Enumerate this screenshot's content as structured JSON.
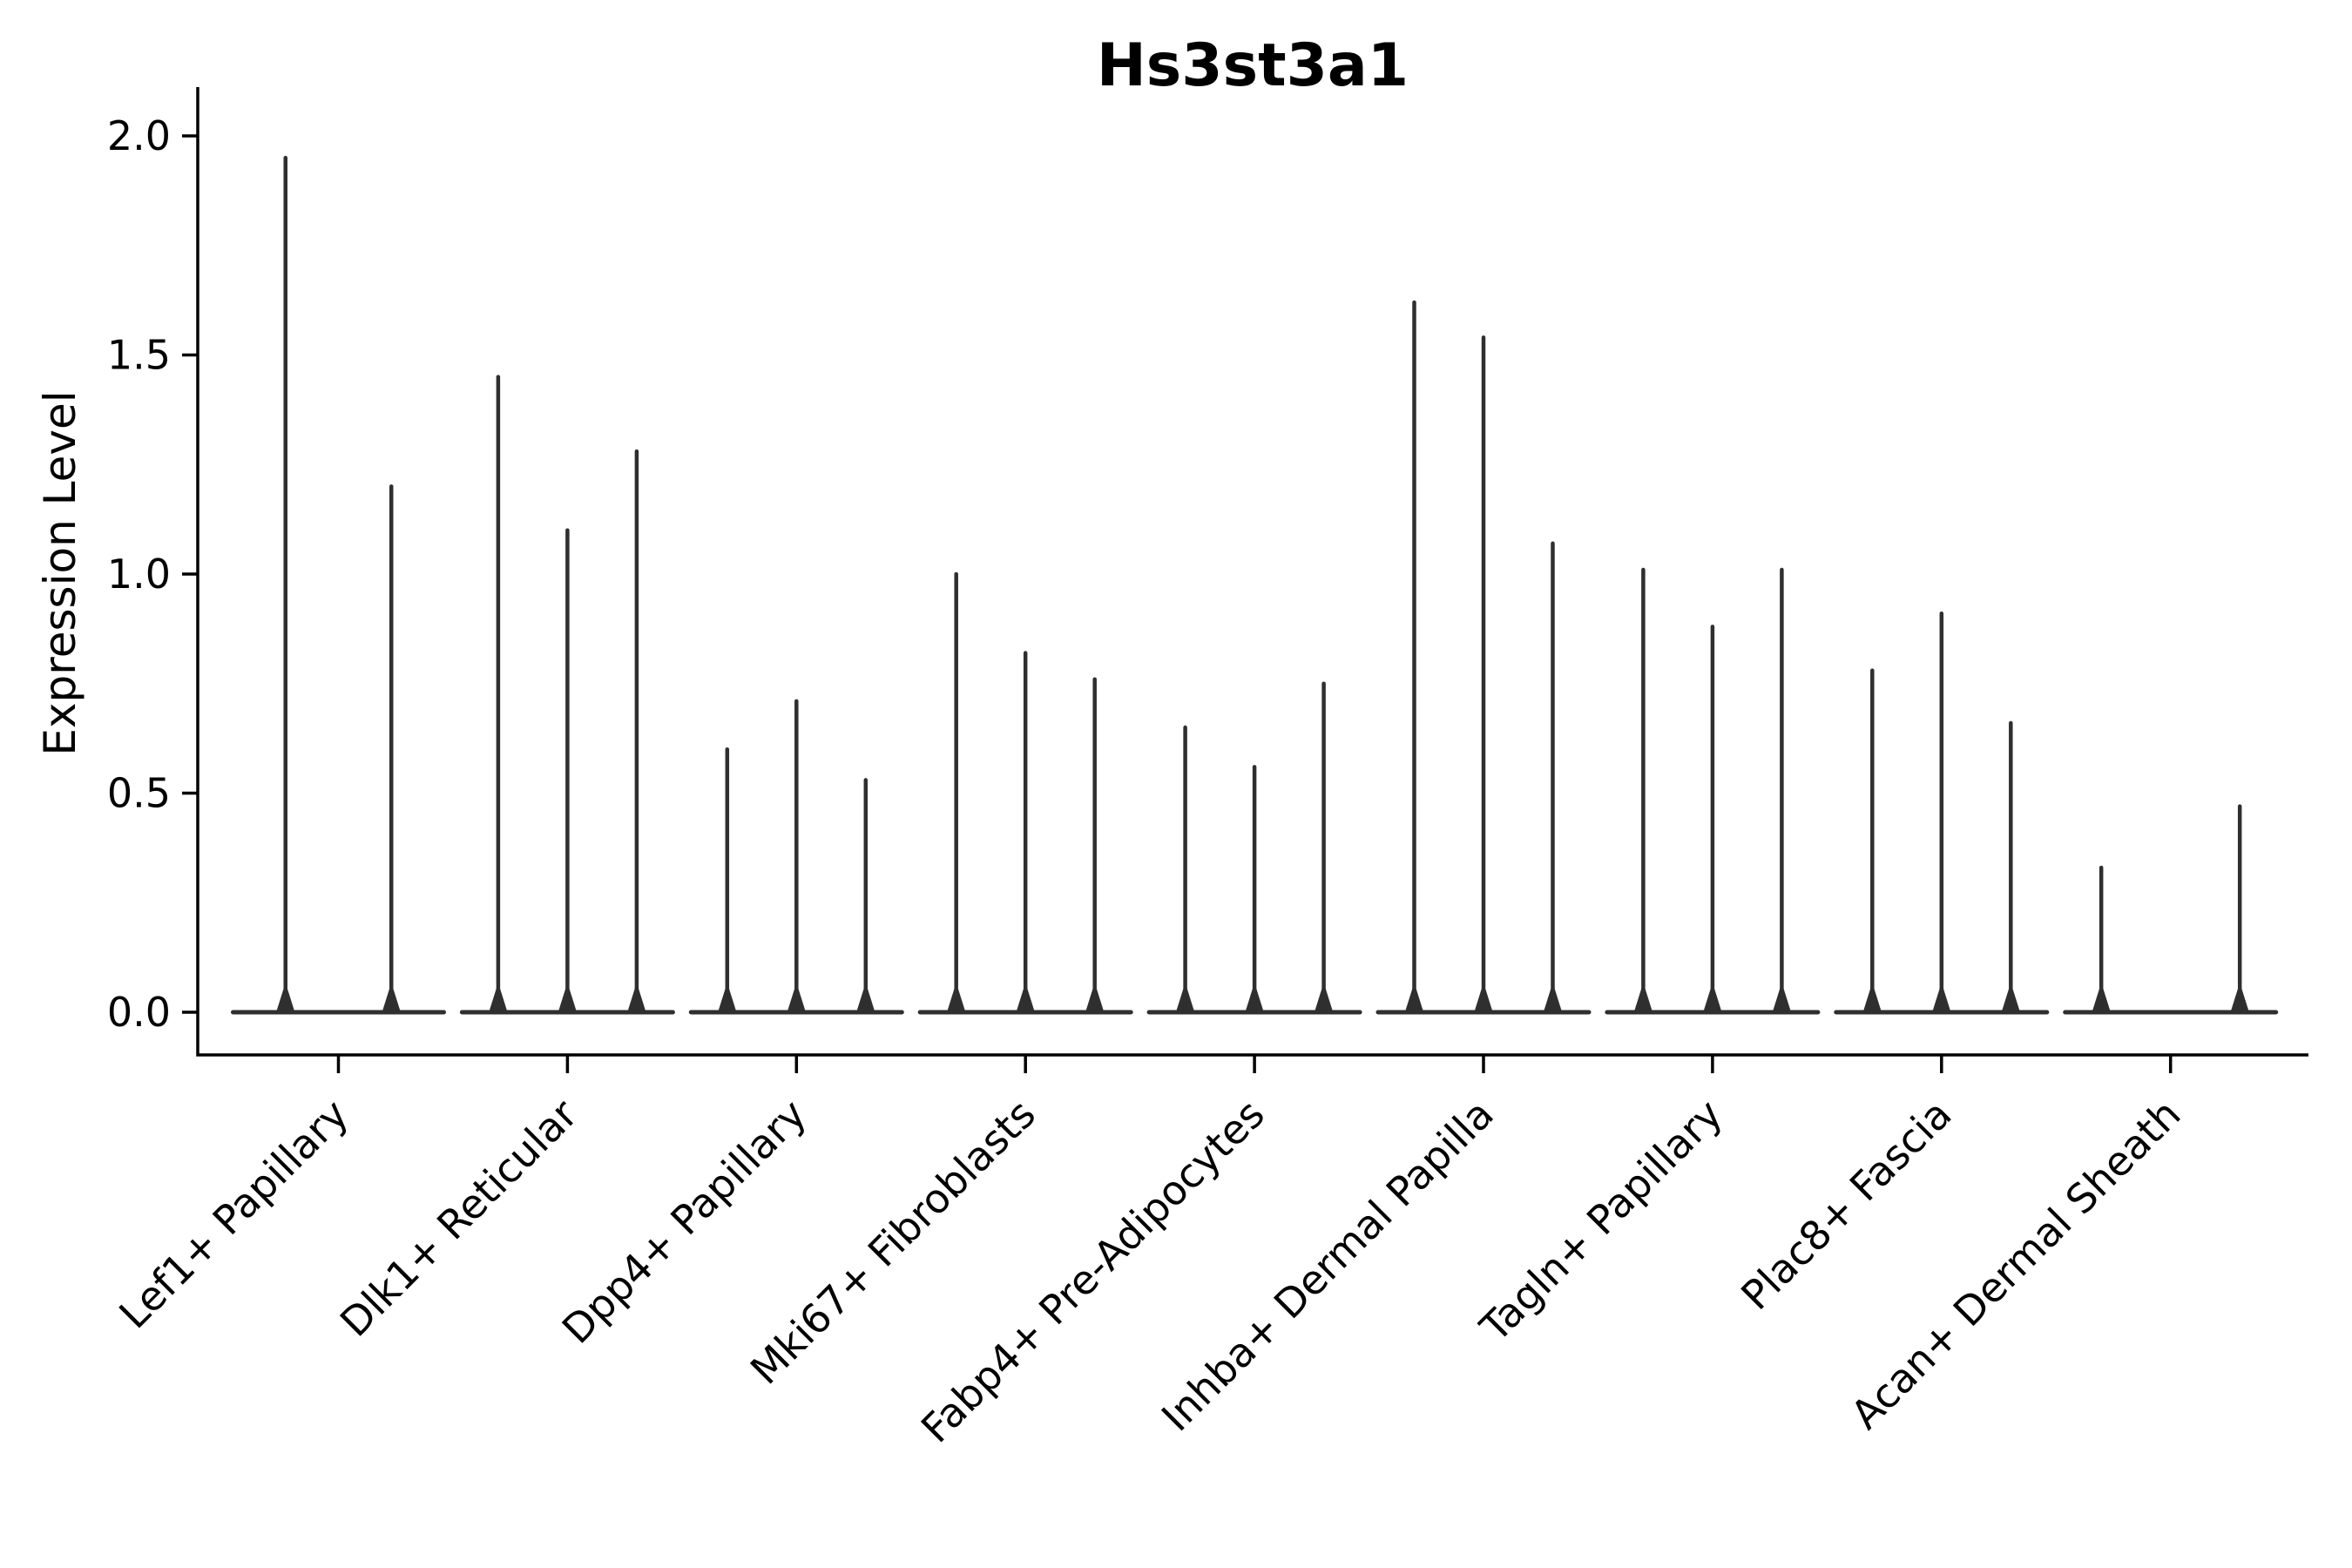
{
  "figure": {
    "background": "#ffffff"
  },
  "chart_data": {
    "type": "violin",
    "title": "Hs3st3a1",
    "ylabel": "Expression Level",
    "xlabel": "",
    "yticks": [
      0.0,
      0.5,
      1.0,
      1.5,
      2.0
    ],
    "ytick_labels": [
      "0.0",
      "0.5",
      "1.0",
      "1.5",
      "2.0"
    ],
    "ylim": [
      -0.1,
      2.11
    ],
    "grid": false,
    "legend": null,
    "x_tick_rotation_deg": 45,
    "violin_shape": "narrow-spike-with-flat-base",
    "categories": [
      "Lef1+ Papillary",
      "Dlk1+ Reticular",
      "Dpp4+ Papillary",
      "Mki67+ Fibroblasts",
      "Fabp4+ Pre-Adipocytes",
      "Inhba+ Dermal Papilla",
      "Tagln+ Papillary",
      "Plac8+ Fascia",
      "Acan+ Dermal Sheath"
    ],
    "violin_max_values": [
      [
        1.95,
        1.2
      ],
      [
        1.45,
        1.1,
        1.28
      ],
      [
        0.6,
        0.71,
        0.53
      ],
      [
        1.0,
        0.82,
        0.76
      ],
      [
        0.65,
        0.56,
        0.75
      ],
      [
        1.62,
        1.54,
        1.07
      ],
      [
        1.01,
        0.88,
        1.01
      ],
      [
        0.78,
        0.91,
        0.66
      ],
      [
        0.33,
        0.0,
        0.47
      ]
    ],
    "colors": {
      "violin": "#2f2f2f",
      "axis": "#000000",
      "text": "#000000"
    }
  }
}
